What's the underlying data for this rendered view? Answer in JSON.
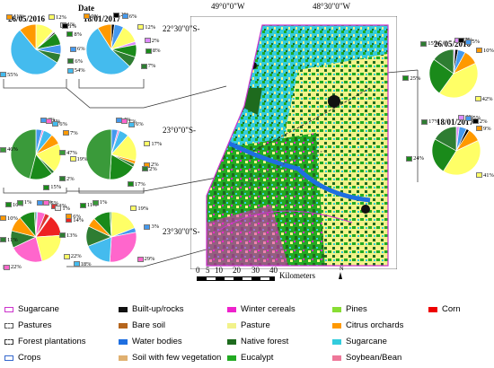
{
  "header": {
    "date_label": "Date"
  },
  "pies": [
    {
      "id": "r1a",
      "date": "26/05/2016",
      "labels": [
        {
          "t": "12%",
          "c": "#ffff66"
        },
        {
          "t": "1%",
          "c": "#e8e8e8"
        },
        {
          "t": "1%",
          "c": "#000000"
        },
        {
          "t": "8%",
          "c": "#1a8a1a"
        },
        {
          "t": "6%",
          "c": "#4499ee"
        },
        {
          "t": "6%",
          "c": "#2e7d32"
        },
        {
          "t": "55%",
          "c": "#44bbee"
        },
        {
          "t": "11%",
          "c": "#ff9900"
        }
      ]
    },
    {
      "id": "r1b",
      "date": "18/01/2017",
      "labels": [
        {
          "t": "2%",
          "c": "#000000"
        },
        {
          "t": "6%",
          "c": "#4499ee"
        },
        {
          "t": "12%",
          "c": "#ffff66"
        },
        {
          "t": "2%",
          "c": "#dd88ff"
        },
        {
          "t": "8%",
          "c": "#1a8a1a"
        },
        {
          "t": "7%",
          "c": "#2e7d32"
        },
        {
          "t": "54%",
          "c": "#44bbee"
        },
        {
          "t": "9%",
          "c": "#ff9900"
        }
      ]
    },
    {
      "id": "r2a",
      "labels": [
        {
          "t": "4%",
          "c": "#4499ee"
        },
        {
          "t": "1%",
          "c": "#ff66cc"
        },
        {
          "t": "6%",
          "c": "#44bbee"
        },
        {
          "t": "7%",
          "c": "#ff9900"
        },
        {
          "t": "19%",
          "c": "#ffff66"
        },
        {
          "t": "2%",
          "c": "#2e7d32"
        },
        {
          "t": "15%",
          "c": "#1a8a1a"
        },
        {
          "t": "46%",
          "c": "#3a9a3a"
        }
      ]
    },
    {
      "id": "r2b",
      "labels": [
        {
          "t": "4%",
          "c": "#4499ee"
        },
        {
          "t": "1%",
          "c": "#ff66cc"
        },
        {
          "t": "6%",
          "c": "#44bbee"
        },
        {
          "t": "17%",
          "c": "#ffff66"
        },
        {
          "t": "2%",
          "c": "#ff9900"
        },
        {
          "t": "2%",
          "c": "#2e7d32"
        },
        {
          "t": "17%",
          "c": "#1a8a1a"
        },
        {
          "t": "47%",
          "c": "#3a9a3a"
        }
      ]
    },
    {
      "id": "r3a",
      "labels": [
        {
          "t": "1%",
          "c": "#4499ee"
        },
        {
          "t": "5%",
          "c": "#ff66cc"
        },
        {
          "t": "3%",
          "c": "#dd3333"
        },
        {
          "t": "1%",
          "c": "#e8e8e8"
        },
        {
          "t": "14%",
          "c": "#ee2222"
        },
        {
          "t": "22%",
          "c": "#ffff66"
        },
        {
          "t": "22%",
          "c": "#ff66cc"
        },
        {
          "t": "11%",
          "c": "#2e7d32"
        },
        {
          "t": "10%",
          "c": "#ff9900"
        },
        {
          "t": "10%",
          "c": "#1a8a1a"
        },
        {
          "t": "1%",
          "c": "#3a9a3a"
        }
      ]
    },
    {
      "id": "r3b",
      "labels": [
        {
          "t": "19%",
          "c": "#ffff66"
        },
        {
          "t": "3%",
          "c": "#4499ee"
        },
        {
          "t": "29%",
          "c": "#ff66cc"
        },
        {
          "t": "18%",
          "c": "#44bbee"
        },
        {
          "t": "13%",
          "c": "#2e7d32"
        },
        {
          "t": "6%",
          "c": "#ff9900"
        },
        {
          "t": "11%",
          "c": "#1a8a1a"
        },
        {
          "t": "1%",
          "c": "#3a9a3a"
        }
      ]
    },
    {
      "id": "rr1",
      "date": "26/05/2016",
      "labels": [
        {
          "t": "1%",
          "c": "#dd88ff"
        },
        {
          "t": "2%",
          "c": "#000000"
        },
        {
          "t": "5%",
          "c": "#4499ee"
        },
        {
          "t": "10%",
          "c": "#ff9900"
        },
        {
          "t": "42%",
          "c": "#ffff66"
        },
        {
          "t": "25%",
          "c": "#1a8a1a"
        },
        {
          "t": "15%",
          "c": "#2e7d32"
        }
      ]
    },
    {
      "id": "rr2",
      "date": "18/01/2017",
      "labels": [
        {
          "t": "2%",
          "c": "#dd88ff"
        },
        {
          "t": "5%",
          "c": "#4499ee"
        },
        {
          "t": "2%",
          "c": "#000000"
        },
        {
          "t": "9%",
          "c": "#ff9900"
        },
        {
          "t": "41%",
          "c": "#ffff66"
        },
        {
          "t": "24%",
          "c": "#1a8a1a"
        },
        {
          "t": "17%",
          "c": "#2e7d32"
        }
      ]
    }
  ],
  "map": {
    "lon_labels": [
      "49°0\"0\"W",
      "48°30\"0\"W"
    ],
    "lat_labels": [
      "22°30\"0\"S-",
      "23°0\"0\"S-",
      "23°30\"0\"S-"
    ],
    "scale_ticks": [
      "0",
      "5",
      "10",
      "20",
      "30",
      "40"
    ],
    "scale_unit": "Kilometers",
    "north": "N"
  },
  "legend": {
    "outlines": [
      {
        "label": "Sugarcane",
        "color": "#cc33cc",
        "style": "solid"
      },
      {
        "label": "Pastures",
        "color": "#555555",
        "style": "dashed"
      },
      {
        "label": "Forest plantations",
        "color": "#333333",
        "style": "dashed"
      },
      {
        "label": "Crops",
        "color": "#3366cc",
        "style": "solid"
      }
    ],
    "col2": [
      {
        "label": "Built-up/rocks",
        "color": "#111111"
      },
      {
        "label": "Bare soil",
        "color": "#b5651d"
      },
      {
        "label": "Water bodies",
        "color": "#1f6fe0"
      },
      {
        "label": "Soil with few vegetation",
        "color": "#e0b070"
      }
    ],
    "col3": [
      {
        "label": "Winter cereals",
        "color": "#ee22cc"
      },
      {
        "label": "Pasture",
        "color": "#f2f28a"
      },
      {
        "label": "Native forest",
        "color": "#1e6b1e"
      },
      {
        "label": "Eucalypt",
        "color": "#22aa22"
      }
    ],
    "col4": [
      {
        "label": "Pines",
        "color": "#88dd33"
      },
      {
        "label": "Citrus orchards",
        "color": "#ff9900"
      },
      {
        "label": "Sugarcane",
        "color": "#33ccdd"
      },
      {
        "label": "Soybean/Bean",
        "color": "#ee7799"
      }
    ],
    "col5": [
      {
        "label": "Corn",
        "color": "#ee0000"
      }
    ]
  }
}
